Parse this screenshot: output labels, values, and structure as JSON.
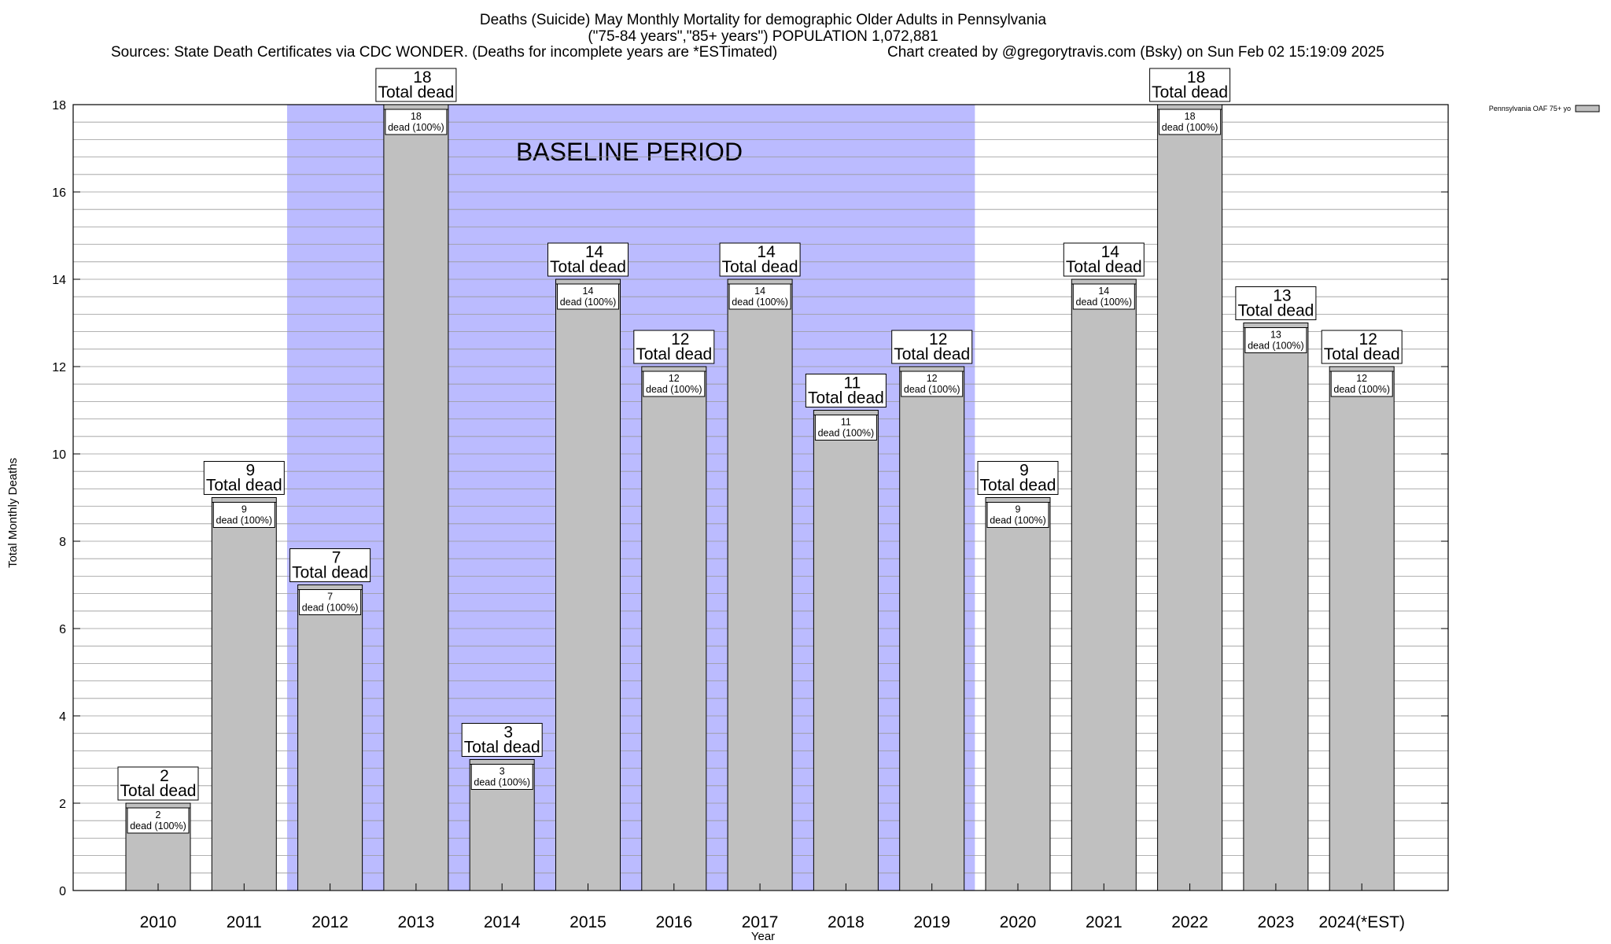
{
  "header": {
    "title_line1": "Deaths (Suicide) May Monthly Mortality for demographic Older Adults in Pennsylvania",
    "title_line2": "(\"75-84 years\",\"85+ years\") POPULATION 1,072,881",
    "sources": "Sources: State Death Certificates via CDC WONDER. (Deaths for incomplete years are *ESTimated)",
    "credit": "Chart created by @gregorytravis.com (Bsky) on Sun Feb 02 15:19:09 2025"
  },
  "chart_data": {
    "type": "bar",
    "title": "Deaths (Suicide) May Monthly Mortality for demographic Older Adults in Pennsylvania",
    "xlabel": "Year",
    "ylabel": "Total Monthly Deaths",
    "ylim": [
      0,
      18
    ],
    "yticks": [
      0,
      2,
      4,
      6,
      8,
      10,
      12,
      14,
      16,
      18
    ],
    "y_minor_step": 0.4,
    "grid": true,
    "legend_position": "top-right",
    "categories": [
      "2010",
      "2011",
      "2012",
      "2013",
      "2014",
      "2015",
      "2016",
      "2017",
      "2018",
      "2019",
      "2020",
      "2021",
      "2022",
      "2023",
      "2024(*EST)"
    ],
    "series": [
      {
        "name": "Pennsylvania OAF 75+ yo",
        "color": "#c0c0c0",
        "values": [
          2,
          9,
          7,
          18,
          3,
          14,
          12,
          14,
          11,
          12,
          9,
          14,
          18,
          13,
          12
        ]
      }
    ],
    "total_label_suffix": "Total dead",
    "segment_label_suffix": "dead (100%)",
    "baseline_period": {
      "label": "BASELINE PERIOD",
      "from": "2012",
      "to": "2019",
      "color": "#bbbbff"
    }
  }
}
